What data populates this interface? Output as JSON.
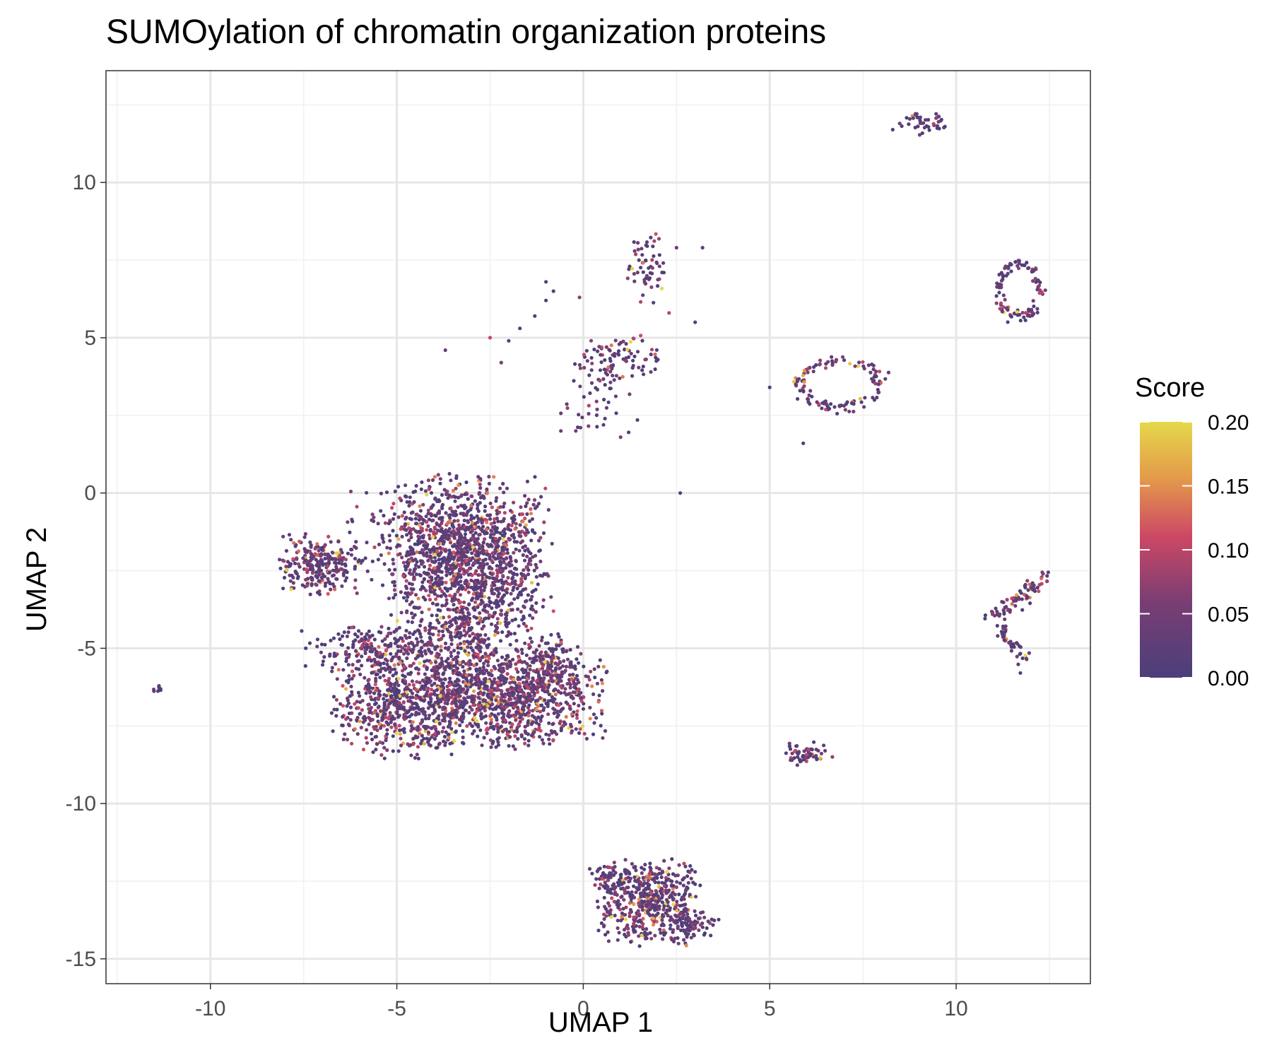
{
  "chart_data": {
    "type": "scatter",
    "title": "SUMOylation of chromatin organization proteins",
    "xlabel": "UMAP 1",
    "ylabel": "UMAP 2",
    "xlim": [
      -12.8,
      13.6
    ],
    "ylim": [
      -15.8,
      13.6
    ],
    "x_ticks": [
      -10,
      -5,
      0,
      5,
      10
    ],
    "y_ticks": [
      -15,
      -10,
      -5,
      0,
      5,
      10
    ],
    "x_tick_labels": [
      "-10",
      "-5",
      "0",
      "5",
      "10"
    ],
    "y_tick_labels": [
      "-15",
      "-10",
      "-5",
      "0",
      "5",
      "10"
    ],
    "grid": true,
    "theme": "white background, light grey gridlines, black panel border",
    "color_scale": {
      "title": "Score",
      "min": 0.0,
      "max": 0.2,
      "breaks": [
        0.0,
        0.05,
        0.1,
        0.15,
        0.2
      ],
      "break_labels": [
        "0.00",
        "0.05",
        "0.10",
        "0.15",
        "0.20"
      ],
      "colors": [
        "#4b3f7a",
        "#7a3e73",
        "#cc4765",
        "#e49a4a",
        "#e5d84a"
      ],
      "legend_position": "right"
    },
    "clusters": [
      {
        "cx": -3.0,
        "cy": -2.2,
        "sx": 1.0,
        "sy": 1.3,
        "n": 1300,
        "score_mean": 0.045
      },
      {
        "cx": -4.4,
        "cy": -1.5,
        "sx": 0.9,
        "sy": 0.9,
        "n": 250,
        "score_mean": 0.04
      },
      {
        "cx": -7.1,
        "cy": -2.3,
        "sx": 0.55,
        "sy": 0.45,
        "n": 260,
        "score_mean": 0.05
      },
      {
        "cx": -5.6,
        "cy": -5.0,
        "sx": 0.9,
        "sy": 0.35,
        "n": 200,
        "score_mean": 0.04
      },
      {
        "cx": -4.8,
        "cy": -6.8,
        "sx": 0.9,
        "sy": 0.8,
        "n": 650,
        "score_mean": 0.045
      },
      {
        "cx": -2.0,
        "cy": -6.6,
        "sx": 1.2,
        "sy": 0.75,
        "n": 1000,
        "score_mean": 0.05
      },
      {
        "cx": -0.9,
        "cy": -5.4,
        "sx": 0.4,
        "sy": 0.4,
        "n": 120,
        "score_mean": 0.05
      },
      {
        "cx": -3.3,
        "cy": -4.8,
        "sx": 0.9,
        "sy": 0.6,
        "n": 200,
        "score_mean": 0.04
      },
      {
        "cx": 1.8,
        "cy": -13.2,
        "sx": 0.65,
        "sy": 0.65,
        "n": 500,
        "score_mean": 0.05
      },
      {
        "cx": 2.9,
        "cy": -13.9,
        "sx": 0.35,
        "sy": 0.2,
        "n": 60,
        "score_mean": 0.03
      },
      {
        "cx": 0.8,
        "cy": -12.4,
        "sx": 0.35,
        "sy": 0.25,
        "n": 50,
        "score_mean": 0.04
      },
      {
        "cx": 1.7,
        "cy": 7.2,
        "sx": 0.25,
        "sy": 0.55,
        "n": 60,
        "score_mean": 0.04
      },
      {
        "cx": 1.0,
        "cy": 4.3,
        "sx": 0.55,
        "sy": 0.4,
        "n": 90,
        "score_mean": 0.045
      },
      {
        "cx": 0.4,
        "cy": 3.0,
        "sx": 0.55,
        "sy": 0.6,
        "n": 40,
        "score_mean": 0.03
      },
      {
        "cx": 6.0,
        "cy": -8.4,
        "sx": 0.3,
        "sy": 0.18,
        "n": 60,
        "score_mean": 0.04
      },
      {
        "cx": 9.2,
        "cy": 11.9,
        "sx": 0.35,
        "sy": 0.2,
        "n": 40,
        "score_mean": 0.03
      },
      {
        "cx": -11.4,
        "cy": -6.3,
        "sx": 0.08,
        "sy": 0.05,
        "n": 8,
        "score_mean": 0.02
      }
    ],
    "rings": [
      {
        "cx": 11.7,
        "cy": 6.5,
        "rx": 0.55,
        "ry": 0.85,
        "n": 110,
        "score_mean": 0.04
      },
      {
        "cx": 6.9,
        "cy": 3.5,
        "rx": 1.1,
        "ry": 0.75,
        "n": 120,
        "score_mean": 0.045
      }
    ],
    "segments": [
      {
        "x1": 11.0,
        "y1": -4.0,
        "x2": 12.4,
        "y2": -2.7,
        "n": 80,
        "score_mean": 0.05
      },
      {
        "x1": 11.2,
        "y1": -4.4,
        "x2": 11.9,
        "y2": -5.5,
        "n": 40,
        "score_mean": 0.05
      }
    ],
    "scattered_points": [
      [
        -3.7,
        4.6
      ],
      [
        -2.5,
        5.0
      ],
      [
        -2.2,
        4.2
      ],
      [
        -2.0,
        4.9
      ],
      [
        -1.7,
        5.3
      ],
      [
        -1.3,
        5.7
      ],
      [
        -1.0,
        6.2
      ],
      [
        -0.8,
        6.5
      ],
      [
        -1.0,
        6.8
      ],
      [
        -0.1,
        6.3
      ],
      [
        2.5,
        7.9
      ],
      [
        3.2,
        7.9
      ],
      [
        3.0,
        5.5
      ],
      [
        2.3,
        5.8
      ],
      [
        -0.2,
        2.0
      ],
      [
        -0.6,
        2.0
      ],
      [
        1.0,
        1.8
      ],
      [
        2.6,
        0.0
      ],
      [
        5.0,
        3.4
      ],
      [
        5.7,
        3.5
      ],
      [
        5.9,
        1.6
      ],
      [
        8.3,
        11.7
      ],
      [
        9.7,
        11.8
      ]
    ]
  }
}
